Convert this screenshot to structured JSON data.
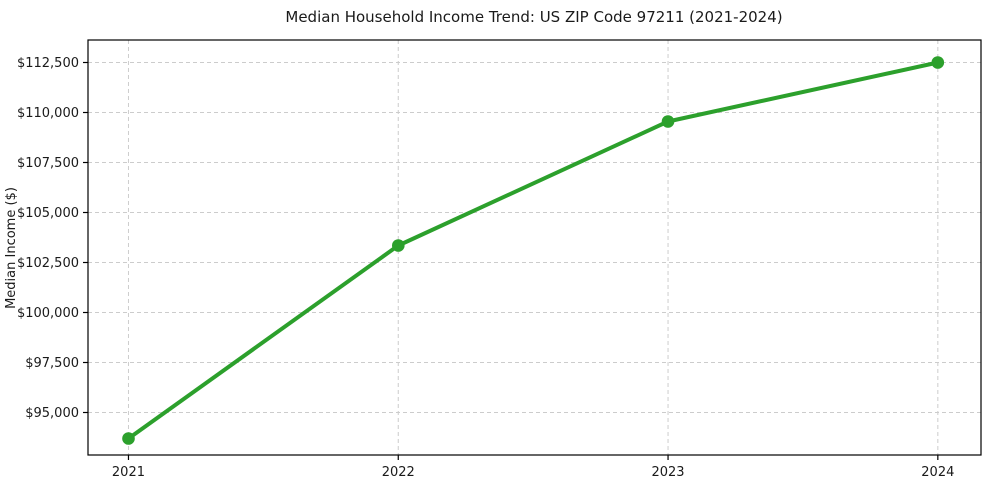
{
  "page": {
    "background_color": "#ffffff"
  },
  "chart_data": {
    "type": "line",
    "title": "Median Household Income Trend: US ZIP Code 97211 (2021-2024)",
    "xlabel": "",
    "ylabel": "Median Income ($)",
    "x": [
      2021,
      2022,
      2023,
      2024
    ],
    "xtick_labels": [
      "2021",
      "2022",
      "2023",
      "2024"
    ],
    "values": [
      93700,
      103350,
      109550,
      112500
    ],
    "yticks": [
      95000,
      97500,
      100000,
      102500,
      105000,
      107500,
      110000,
      112500
    ],
    "ytick_labels": [
      "$95,000",
      "$97,500",
      "$100,000",
      "$102,500",
      "$105,000",
      "$107,500",
      "$110,000",
      "$112,500"
    ],
    "xlim": [
      2020.85,
      2024.16
    ],
    "ylim": [
      92875,
      113625
    ],
    "grid": true,
    "grid_style": "dashed",
    "legend_position": "none",
    "line_color": "#2ca02c",
    "marker": "circle",
    "grid_color": "#cccccc",
    "axis_color": "#000000",
    "text_color": "#1a1a1a"
  }
}
